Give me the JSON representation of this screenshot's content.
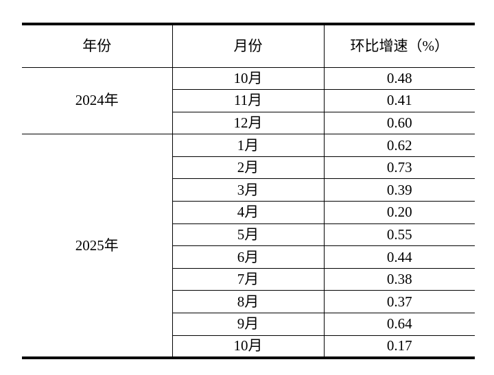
{
  "colors": {
    "background": "#ffffff",
    "text": "#000000",
    "border": "#000000"
  },
  "table": {
    "columns": [
      "年份",
      "月份",
      "环比增速（%）"
    ],
    "groups": [
      {
        "year": "2024年",
        "rows": [
          [
            "10月",
            "0.48"
          ],
          [
            "11月",
            "0.41"
          ],
          [
            "12月",
            "0.60"
          ]
        ]
      },
      {
        "year": "2025年",
        "rows": [
          [
            "1月",
            "0.62"
          ],
          [
            "2月",
            "0.73"
          ],
          [
            "3月",
            "0.39"
          ],
          [
            "4月",
            "0.20"
          ],
          [
            "5月",
            "0.55"
          ],
          [
            "6月",
            "0.44"
          ],
          [
            "7月",
            "0.38"
          ],
          [
            "8月",
            "0.37"
          ],
          [
            "9月",
            "0.64"
          ],
          [
            "10月",
            "0.17"
          ]
        ]
      }
    ]
  }
}
